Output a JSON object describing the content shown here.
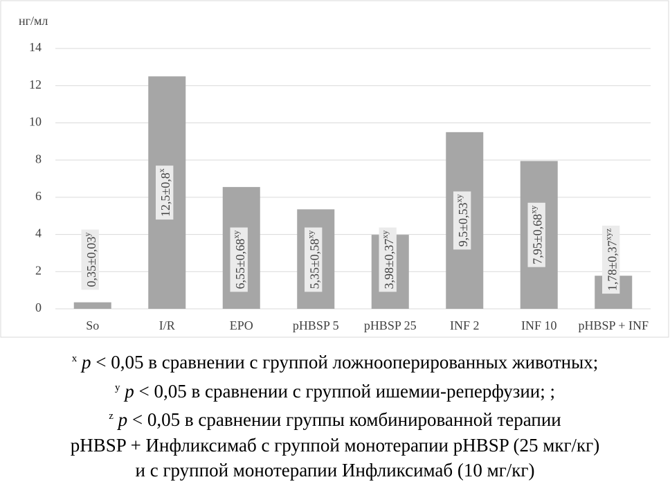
{
  "chart_data": {
    "type": "bar",
    "y_label": "нг/мл",
    "categories": [
      "So",
      "I/R",
      "EPO",
      "pHBSP 5",
      "pHBSP 25",
      "INF 2",
      "INF 10",
      "pHBSP + INF"
    ],
    "values": [
      0.35,
      12.5,
      6.55,
      5.35,
      3.98,
      9.5,
      7.95,
      1.78
    ],
    "value_labels": [
      "0,35±0,03",
      "12,5±0,8",
      "6,55±0,68",
      "5,35±0,58",
      "3,98±0,37",
      "9,5±0,53",
      "7,95±0,68",
      "1,78±0,37"
    ],
    "label_marks": [
      "y",
      "x",
      "xy",
      "xy",
      "xy",
      "xy",
      "xy",
      "xyz"
    ],
    "color": "#a6a6a6",
    "ylim": [
      0,
      14
    ],
    "yticks": [
      0,
      2,
      4,
      6,
      8,
      10,
      12,
      14
    ],
    "grid": true
  },
  "notes": [
    {
      "mark": "x",
      "symbol": "p",
      "text": "< 0,05 в сравнении с группой ложнооперированных животных;"
    },
    {
      "mark": "y",
      "symbol": "p",
      "text": "< 0,05 в сравнении с группой ишемии-реперфузии; ;"
    },
    {
      "mark": "z",
      "symbol": "p",
      "text": "< 0,05 в сравнении группы комбинированной терапии"
    },
    {
      "text": "pHBSP + Инфликсимаб с группой монотерапии pHBSP (25 мкг/кг)"
    },
    {
      "text": "и с группой монотерапии Инфликсимаб (10 мг/кг)"
    }
  ]
}
